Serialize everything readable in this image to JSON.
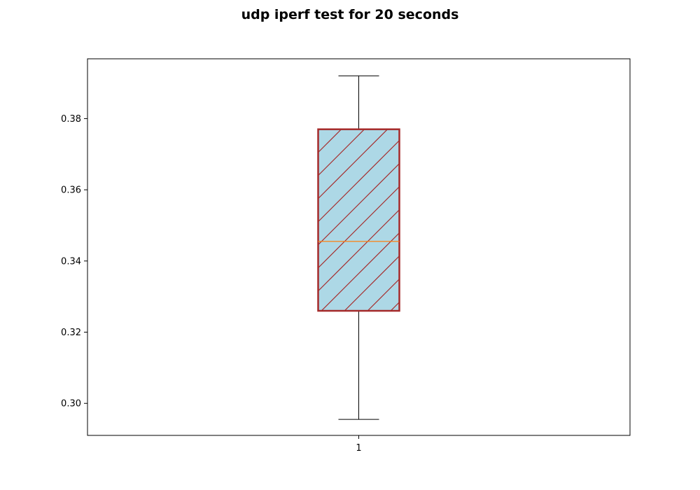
{
  "chart_data": {
    "type": "box",
    "title": "udp iperf test for 20 seconds",
    "xlabel": "",
    "ylabel": "",
    "categories": [
      "1"
    ],
    "boxes": [
      {
        "label": "1",
        "whisker_low": 0.2955,
        "q1": 0.326,
        "median": 0.3455,
        "q3": 0.377,
        "whisker_high": 0.392
      }
    ],
    "ylim": [
      0.291,
      0.3968
    ],
    "yticks": [
      0.3,
      0.32,
      0.34,
      0.36,
      0.38
    ],
    "ytick_labels": [
      "0.30",
      "0.32",
      "0.34",
      "0.36",
      "0.38"
    ],
    "grid": false,
    "colors": {
      "box_fill": "#add8e6",
      "box_edge": "#a52a2a",
      "hatch": "#a52a2a",
      "median": "#ff7f0e",
      "whisker": "#000000"
    }
  }
}
